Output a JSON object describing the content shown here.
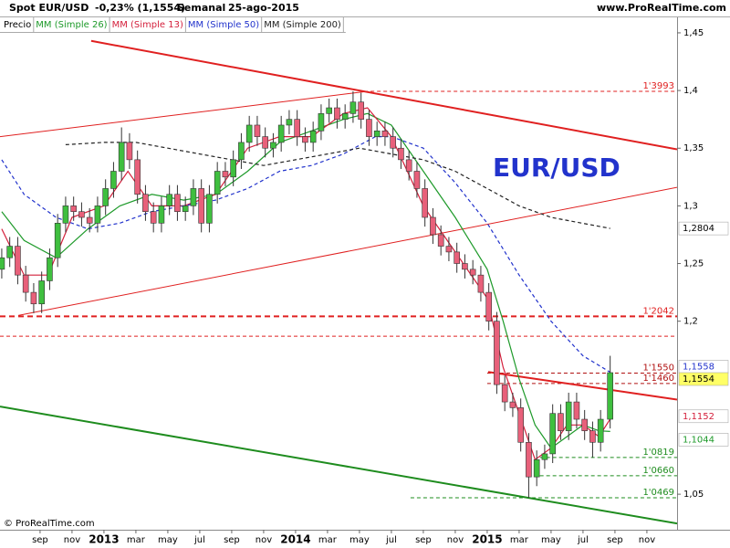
{
  "chart_data": {
    "type": "candlestick",
    "header": {
      "symbol": "Spot EUR/USD",
      "change": "-0,23% (1,1554)",
      "period": "Semanal",
      "date": "25-ago-2015",
      "site": "www.ProRealTime.com"
    },
    "watermark": "EUR/USD",
    "footer": "© ProRealTime.com",
    "xlim": [
      5.49,
      47.89
    ],
    "ylim": [
      1.02,
      1.465
    ],
    "xticks": [
      {
        "value": 8,
        "label": "sep"
      },
      {
        "value": 10,
        "label": "nov"
      },
      {
        "value": 12,
        "label": "2013"
      },
      {
        "value": 14,
        "label": "mar"
      },
      {
        "value": 16,
        "label": "may"
      },
      {
        "value": 18,
        "label": "jul"
      },
      {
        "value": 20,
        "label": "sep"
      },
      {
        "value": 22,
        "label": "nov"
      },
      {
        "value": 24,
        "label": "2014"
      },
      {
        "value": 26,
        "label": "mar"
      },
      {
        "value": 28,
        "label": "may"
      },
      {
        "value": 30,
        "label": "jul"
      },
      {
        "value": 32,
        "label": "sep"
      },
      {
        "value": 34,
        "label": "nov"
      },
      {
        "value": 36,
        "label": "2015"
      },
      {
        "value": 38,
        "label": "mar"
      },
      {
        "value": 40,
        "label": "may"
      },
      {
        "value": 42,
        "label": "jul"
      },
      {
        "value": 44,
        "label": "sep"
      },
      {
        "value": 46,
        "label": "nov"
      }
    ],
    "yticks": [
      {
        "value": 1.45,
        "label": "1,45"
      },
      {
        "value": 1.4,
        "label": "1,4"
      },
      {
        "value": 1.35,
        "label": "1,35"
      },
      {
        "value": 1.3,
        "label": "1,3"
      },
      {
        "value": 1.25,
        "label": "1,25"
      },
      {
        "value": 1.2,
        "label": "1,2"
      },
      {
        "value": 1.05,
        "label": "1,05"
      }
    ],
    "candles": {
      "name": "Precio",
      "up_color": "#3fbf3f",
      "down_color": "#e8607a",
      "x": [
        5.6,
        6.1,
        6.6,
        7.1,
        7.6,
        8.1,
        8.6,
        9.1,
        9.6,
        10.1,
        10.6,
        11.1,
        11.6,
        12.1,
        12.6,
        13.1,
        13.6,
        14.1,
        14.6,
        15.1,
        15.6,
        16.1,
        16.6,
        17.1,
        17.6,
        18.1,
        18.6,
        19.1,
        19.6,
        20.1,
        20.6,
        21.1,
        21.6,
        22.1,
        22.6,
        23.1,
        23.6,
        24.1,
        24.6,
        25.1,
        25.6,
        26.1,
        26.6,
        27.1,
        27.6,
        28.1,
        28.6,
        29.1,
        29.6,
        30.1,
        30.6,
        31.1,
        31.6,
        32.1,
        32.6,
        33.1,
        33.6,
        34.1,
        34.6,
        35.1,
        35.6,
        36.1,
        36.6,
        37.1,
        37.6,
        38.1,
        38.6,
        39.1,
        39.6,
        40.1,
        40.6,
        41.1,
        41.6,
        42.1,
        42.6,
        43.1,
        43.7
      ],
      "open": [
        1.245,
        1.255,
        1.265,
        1.24,
        1.225,
        1.215,
        1.235,
        1.255,
        1.285,
        1.3,
        1.295,
        1.29,
        1.285,
        1.3,
        1.315,
        1.33,
        1.355,
        1.34,
        1.31,
        1.295,
        1.285,
        1.3,
        1.31,
        1.295,
        1.3,
        1.315,
        1.285,
        1.31,
        1.33,
        1.325,
        1.34,
        1.355,
        1.37,
        1.36,
        1.35,
        1.355,
        1.37,
        1.375,
        1.36,
        1.355,
        1.365,
        1.38,
        1.385,
        1.375,
        1.38,
        1.39,
        1.375,
        1.36,
        1.365,
        1.36,
        1.35,
        1.34,
        1.33,
        1.315,
        1.29,
        1.275,
        1.265,
        1.26,
        1.25,
        1.245,
        1.24,
        1.225,
        1.2,
        1.145,
        1.13,
        1.125,
        1.095,
        1.065,
        1.08,
        1.085,
        1.12,
        1.105,
        1.13,
        1.115,
        1.105,
        1.095,
        1.115
      ],
      "high": [
        1.263,
        1.273,
        1.273,
        1.248,
        1.233,
        1.243,
        1.263,
        1.293,
        1.308,
        1.308,
        1.303,
        1.298,
        1.308,
        1.323,
        1.338,
        1.368,
        1.363,
        1.348,
        1.318,
        1.303,
        1.308,
        1.318,
        1.318,
        1.308,
        1.323,
        1.323,
        1.318,
        1.338,
        1.338,
        1.348,
        1.363,
        1.378,
        1.378,
        1.368,
        1.363,
        1.378,
        1.383,
        1.383,
        1.368,
        1.373,
        1.388,
        1.393,
        1.393,
        1.388,
        1.3993,
        1.398,
        1.383,
        1.373,
        1.373,
        1.368,
        1.358,
        1.348,
        1.338,
        1.323,
        1.298,
        1.283,
        1.273,
        1.268,
        1.258,
        1.253,
        1.248,
        1.233,
        1.208,
        1.153,
        1.138,
        1.133,
        1.103,
        1.088,
        1.093,
        1.128,
        1.128,
        1.138,
        1.138,
        1.123,
        1.113,
        1.123,
        1.17
      ],
      "low": [
        1.237,
        1.247,
        1.232,
        1.217,
        1.207,
        1.207,
        1.227,
        1.247,
        1.277,
        1.287,
        1.282,
        1.277,
        1.277,
        1.292,
        1.307,
        1.322,
        1.332,
        1.302,
        1.287,
        1.277,
        1.277,
        1.292,
        1.287,
        1.287,
        1.292,
        1.277,
        1.277,
        1.302,
        1.317,
        1.317,
        1.332,
        1.347,
        1.352,
        1.342,
        1.342,
        1.347,
        1.362,
        1.352,
        1.347,
        1.347,
        1.357,
        1.372,
        1.367,
        1.367,
        1.372,
        1.367,
        1.352,
        1.352,
        1.352,
        1.342,
        1.332,
        1.322,
        1.307,
        1.282,
        1.267,
        1.257,
        1.252,
        1.242,
        1.237,
        1.232,
        1.217,
        1.192,
        1.137,
        1.122,
        1.117,
        1.087,
        1.0469,
        1.057,
        1.072,
        1.077,
        1.097,
        1.097,
        1.107,
        1.097,
        1.0819,
        1.087,
        1.107
      ],
      "close": [
        1.255,
        1.265,
        1.24,
        1.225,
        1.215,
        1.235,
        1.255,
        1.285,
        1.3,
        1.295,
        1.29,
        1.285,
        1.3,
        1.315,
        1.33,
        1.355,
        1.34,
        1.31,
        1.295,
        1.285,
        1.3,
        1.31,
        1.295,
        1.3,
        1.315,
        1.285,
        1.31,
        1.33,
        1.325,
        1.34,
        1.355,
        1.37,
        1.36,
        1.35,
        1.355,
        1.37,
        1.375,
        1.36,
        1.355,
        1.365,
        1.38,
        1.385,
        1.375,
        1.38,
        1.39,
        1.375,
        1.36,
        1.365,
        1.36,
        1.35,
        1.34,
        1.33,
        1.315,
        1.29,
        1.275,
        1.265,
        1.26,
        1.25,
        1.245,
        1.24,
        1.225,
        1.2,
        1.145,
        1.13,
        1.125,
        1.095,
        1.065,
        1.08,
        1.085,
        1.12,
        1.105,
        1.13,
        1.115,
        1.105,
        1.095,
        1.115,
        1.1554
      ]
    },
    "series": [
      {
        "name": "MM (Simple 26)",
        "color": "#1e9a2a",
        "dashed": false,
        "x": [
          5.6,
          7,
          9,
          11,
          13,
          15,
          17,
          19,
          21,
          23,
          25,
          27,
          28.5,
          30,
          32,
          34,
          36,
          37,
          38,
          39,
          40,
          41,
          42,
          43,
          43.7
        ],
        "values": [
          1.295,
          1.27,
          1.255,
          1.28,
          1.3,
          1.31,
          1.305,
          1.31,
          1.33,
          1.355,
          1.365,
          1.375,
          1.38,
          1.37,
          1.33,
          1.29,
          1.245,
          1.2,
          1.15,
          1.11,
          1.09,
          1.1,
          1.11,
          1.105,
          1.1044
        ]
      },
      {
        "name": "MM (Simple 13)",
        "color": "#d4203c",
        "dashed": false,
        "x": [
          5.6,
          7,
          8.5,
          10,
          12,
          13.5,
          15,
          17,
          19,
          21,
          23,
          25,
          27,
          28.5,
          30,
          32,
          34,
          36,
          37,
          38,
          39,
          40,
          41,
          42,
          43,
          43.7
        ],
        "values": [
          1.28,
          1.24,
          1.24,
          1.29,
          1.3,
          1.33,
          1.3,
          1.3,
          1.31,
          1.35,
          1.36,
          1.36,
          1.38,
          1.385,
          1.36,
          1.3,
          1.26,
          1.22,
          1.16,
          1.12,
          1.08,
          1.09,
          1.11,
          1.11,
          1.1,
          1.1152
        ]
      },
      {
        "name": "MM (Simple 50)",
        "color": "#2233cc",
        "dashed": true,
        "x": [
          5.6,
          7,
          9,
          11,
          13,
          15,
          17,
          19,
          21,
          23,
          25,
          27,
          29,
          30,
          32,
          34,
          36,
          38,
          40,
          42,
          43.7
        ],
        "values": [
          1.34,
          1.31,
          1.29,
          1.28,
          1.285,
          1.295,
          1.3,
          1.305,
          1.315,
          1.33,
          1.335,
          1.345,
          1.36,
          1.36,
          1.35,
          1.32,
          1.285,
          1.24,
          1.2,
          1.17,
          1.1558
        ]
      },
      {
        "name": "MM (Simple 200)",
        "color": "#222222",
        "dashed": true,
        "x": [
          9.6,
          12,
          14,
          16,
          18,
          20,
          22,
          24,
          26,
          28,
          30,
          32,
          34,
          36,
          38,
          40,
          43.7
        ],
        "values": [
          1.353,
          1.355,
          1.355,
          1.35,
          1.345,
          1.34,
          1.335,
          1.34,
          1.345,
          1.35,
          1.345,
          1.34,
          1.33,
          1.315,
          1.3,
          1.29,
          1.2804
        ]
      }
    ],
    "trendlines": [
      {
        "color": "#e02020",
        "width": 2,
        "x": [
          11.2,
          47.89
        ],
        "values": [
          1.443,
          1.349
        ]
      },
      {
        "color": "#e02020",
        "width": 1,
        "x": [
          5.49,
          28.34
        ],
        "values": [
          1.36,
          1.399
        ]
      },
      {
        "color": "#e02020",
        "width": 1,
        "x": [
          6.63,
          47.89
        ],
        "values": [
          1.205,
          1.316
        ]
      },
      {
        "color": "#e02020",
        "width": 2,
        "x": [
          36.06,
          47.89
        ],
        "values": [
          1.156,
          1.132
        ]
      },
      {
        "color": "#1e8c1e",
        "width": 2,
        "x": [
          5.49,
          47.89
        ],
        "values": [
          1.126,
          1.0246
        ]
      }
    ],
    "levels": [
      {
        "value": 1.3993,
        "label": "1'3993",
        "color": "#e02020",
        "x_start": 28.3,
        "width": 1
      },
      {
        "value": 1.2042,
        "label": "1'2042",
        "color": "#e02020",
        "x_start": 5.49,
        "width": 2
      },
      {
        "value": 1.187,
        "color": "#e02020",
        "x_start": 5.49,
        "width": 1
      },
      {
        "value": 1.155,
        "label": "1'1550",
        "color": "#b01010",
        "x_start": 36.0,
        "width": 1
      },
      {
        "value": 1.146,
        "label": "1'1460",
        "color": "#b01010",
        "x_start": 36.0,
        "width": 1
      },
      {
        "value": 1.0819,
        "label": "1'0819",
        "color": "#1e8c1e",
        "x_start": 39.3,
        "width": 1
      },
      {
        "value": 1.066,
        "label": "1'0660",
        "color": "#1e8c1e",
        "x_start": 39.3,
        "width": 1
      },
      {
        "value": 1.0469,
        "label": "1'0469",
        "color": "#1e8c1e",
        "x_start": 31.2,
        "width": 1
      }
    ],
    "price_tags": [
      {
        "value": 1.2804,
        "label": "1,2804",
        "color": "#000000",
        "background": "#ffffff"
      },
      {
        "value": 1.1558,
        "label": "1,1558",
        "color": "#2233cc",
        "background": "#ffffff"
      },
      {
        "value": 1.1554,
        "label": "1,1554",
        "color": "#000000",
        "background": "#ffff66"
      },
      {
        "value": 1.1152,
        "label": "1,1152",
        "color": "#d4203c",
        "background": "#ffffff"
      },
      {
        "value": 1.1044,
        "label": "1,1044",
        "color": "#1e9a2a",
        "background": "#ffffff"
      }
    ]
  }
}
